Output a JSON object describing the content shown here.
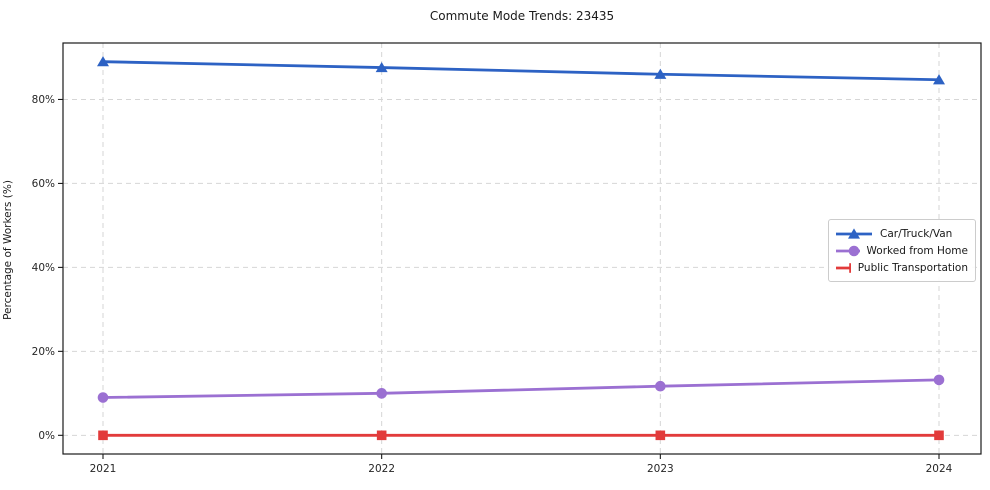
{
  "chart_data": {
    "type": "line",
    "title": "Commute Mode Trends: 23435",
    "xlabel": "",
    "ylabel": "Percentage of Workers (%)",
    "categories": [
      "2021",
      "2022",
      "2023",
      "2024"
    ],
    "series": [
      {
        "name": "Car/Truck/Van",
        "color": "#2d62c4",
        "marker": "triangle",
        "values": [
          89.0,
          87.6,
          86.0,
          84.7
        ]
      },
      {
        "name": "Worked from Home",
        "color": "#9b70d2",
        "marker": "circle",
        "values": [
          9.0,
          10.0,
          11.7,
          13.2
        ]
      },
      {
        "name": "Public Transportation",
        "color": "#e23b3b",
        "marker": "square",
        "values": [
          0.0,
          0.0,
          0.0,
          0.0
        ]
      }
    ],
    "yticks": [
      0,
      20,
      40,
      60,
      80
    ],
    "ytick_labels": [
      "0%",
      "20%",
      "40%",
      "60%",
      "80%"
    ],
    "ylim": [
      -4.45,
      93.45
    ],
    "grid": true,
    "grid_style": "dashed",
    "legend_position": "center right",
    "colors": {
      "background": "#ffffff",
      "gridline": "#d6d6d6",
      "spine": "#1a1a1a",
      "tick_text": "#262626"
    }
  }
}
